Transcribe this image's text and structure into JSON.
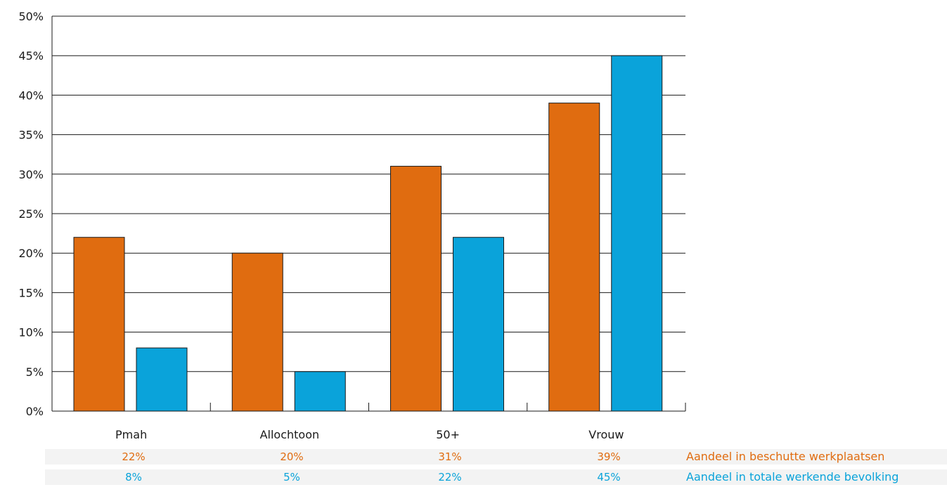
{
  "chart_data": {
    "type": "bar",
    "categories": [
      "Pmah",
      "Allochtoon",
      "50+",
      "Vrouw"
    ],
    "series": [
      {
        "name": "Aandeel in beschutte werkplaatsen",
        "values": [
          22,
          20,
          31,
          39
        ],
        "color": "#e06c10",
        "labels": [
          "22%",
          "20%",
          "31%",
          "39%"
        ]
      },
      {
        "name": "Aandeel in totale werkende bevolking",
        "values": [
          8,
          5,
          22,
          45
        ],
        "color": "#0aa3da",
        "labels": [
          "8%",
          "5%",
          "22%",
          "45%"
        ]
      }
    ],
    "y_ticks": [
      "0%",
      "5%",
      "10%",
      "15%",
      "20%",
      "25%",
      "30%",
      "35%",
      "40%",
      "45%",
      "50%"
    ],
    "ylim": [
      0,
      50
    ],
    "grid": true,
    "legend": "data table below chart, series names at right"
  }
}
